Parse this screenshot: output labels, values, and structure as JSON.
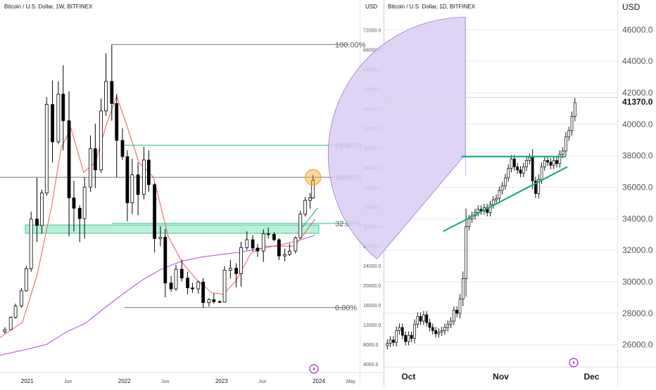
{
  "colors": {
    "candle": "#000000",
    "fib_gray": "#7a7a7a",
    "fib_green": "#1fb98a",
    "ema_red": "#f05a5a",
    "sma_purple": "#b14be6",
    "zone_fill": "#7ee6b8",
    "circle_orange": "#f5a623",
    "trend_teal": "#1aaa8c",
    "arc_fill": "#d9ccf3",
    "grid": "#e8e8e8",
    "logo_purple": "#9c27b0"
  },
  "icons": [
    "tradingview-logo-icon",
    "tradingview-logo-icon"
  ],
  "chart_data": [
    {
      "type": "candlestick",
      "title": "Bitcoin / U.S. Dollar, 1W, BITFINEX",
      "currency": "USD",
      "x_ticks": [
        "2021",
        "Jun",
        "2022",
        "Jun",
        "2023",
        "Jun",
        "2024",
        "May"
      ],
      "x_range_years": [
        2020.72,
        2024.42
      ],
      "y_range": [
        2300,
        75200
      ],
      "y_ticks": [
        "72000.0",
        "68000.0",
        "64000.0",
        "60000.0",
        "56000.0",
        "52000.0",
        "48000.0",
        "44000.0",
        "40000.0",
        "36000.0",
        "32000.0",
        "28000.0",
        "24000.0",
        "20000.0",
        "16000.0",
        "12000.0",
        "8000.0",
        "4000.0"
      ],
      "candles": [
        {
          "t": 2020.77,
          "o": 10600,
          "h": 11500,
          "l": 10200,
          "c": 11000
        },
        {
          "t": 2020.83,
          "o": 11000,
          "h": 13700,
          "l": 10900,
          "c": 13500
        },
        {
          "t": 2020.88,
          "o": 13500,
          "h": 16300,
          "l": 13200,
          "c": 15800
        },
        {
          "t": 2020.94,
          "o": 15800,
          "h": 19500,
          "l": 15500,
          "c": 18900
        },
        {
          "t": 2020.99,
          "o": 18900,
          "h": 24000,
          "l": 18700,
          "c": 23400
        },
        {
          "t": 2021.04,
          "o": 23400,
          "h": 35000,
          "l": 22800,
          "c": 33500
        },
        {
          "t": 2021.1,
          "o": 33500,
          "h": 41900,
          "l": 28800,
          "c": 32200
        },
        {
          "t": 2021.15,
          "o": 32200,
          "h": 39500,
          "l": 30500,
          "c": 38800
        },
        {
          "t": 2021.2,
          "o": 38800,
          "h": 58300,
          "l": 38200,
          "c": 56800
        },
        {
          "t": 2021.26,
          "o": 56800,
          "h": 61700,
          "l": 45000,
          "c": 49200
        },
        {
          "t": 2021.32,
          "o": 49200,
          "h": 61500,
          "l": 48800,
          "c": 58900
        },
        {
          "t": 2021.37,
          "o": 58900,
          "h": 64800,
          "l": 47500,
          "c": 53500
        },
        {
          "t": 2021.43,
          "o": 53500,
          "h": 59500,
          "l": 30000,
          "c": 37800
        },
        {
          "t": 2021.48,
          "o": 37800,
          "h": 41300,
          "l": 31000,
          "c": 35700
        },
        {
          "t": 2021.54,
          "o": 35700,
          "h": 36300,
          "l": 28800,
          "c": 33600
        },
        {
          "t": 2021.59,
          "o": 33600,
          "h": 42000,
          "l": 29500,
          "c": 40000
        },
        {
          "t": 2021.65,
          "o": 40000,
          "h": 50500,
          "l": 39000,
          "c": 47800
        },
        {
          "t": 2021.7,
          "o": 47800,
          "h": 52900,
          "l": 39800,
          "c": 43500
        },
        {
          "t": 2021.76,
          "o": 43500,
          "h": 58000,
          "l": 42900,
          "c": 55500
        },
        {
          "t": 2021.81,
          "o": 55500,
          "h": 67200,
          "l": 54500,
          "c": 61500
        },
        {
          "t": 2021.87,
          "o": 61500,
          "h": 69000,
          "l": 53500,
          "c": 57000
        },
        {
          "t": 2021.92,
          "o": 57000,
          "h": 59000,
          "l": 42000,
          "c": 49500
        },
        {
          "t": 2021.98,
          "o": 49500,
          "h": 52000,
          "l": 45500,
          "c": 46200
        },
        {
          "t": 2022.03,
          "o": 46200,
          "h": 47500,
          "l": 33000,
          "c": 36800
        },
        {
          "t": 2022.08,
          "o": 36800,
          "h": 45800,
          "l": 34500,
          "c": 42500
        },
        {
          "t": 2022.14,
          "o": 42500,
          "h": 45000,
          "l": 34300,
          "c": 38500
        },
        {
          "t": 2022.2,
          "o": 38500,
          "h": 48200,
          "l": 37500,
          "c": 45500
        },
        {
          "t": 2022.25,
          "o": 45500,
          "h": 47500,
          "l": 39000,
          "c": 40500
        },
        {
          "t": 2022.31,
          "o": 40500,
          "h": 40800,
          "l": 26700,
          "c": 29500
        },
        {
          "t": 2022.37,
          "o": 29500,
          "h": 32000,
          "l": 28000,
          "c": 29800
        },
        {
          "t": 2022.42,
          "o": 29800,
          "h": 31500,
          "l": 17600,
          "c": 20500
        },
        {
          "t": 2022.48,
          "o": 20500,
          "h": 21900,
          "l": 18700,
          "c": 19300
        },
        {
          "t": 2022.53,
          "o": 19300,
          "h": 24200,
          "l": 18900,
          "c": 23300
        },
        {
          "t": 2022.59,
          "o": 23300,
          "h": 25200,
          "l": 20800,
          "c": 21500
        },
        {
          "t": 2022.65,
          "o": 21500,
          "h": 22800,
          "l": 18200,
          "c": 19500
        },
        {
          "t": 2022.7,
          "o": 19500,
          "h": 20500,
          "l": 18500,
          "c": 19300
        },
        {
          "t": 2022.76,
          "o": 19300,
          "h": 21000,
          "l": 18300,
          "c": 20700
        },
        {
          "t": 2022.81,
          "o": 20700,
          "h": 21500,
          "l": 15500,
          "c": 16500
        },
        {
          "t": 2022.87,
          "o": 16500,
          "h": 17400,
          "l": 15700,
          "c": 17100
        },
        {
          "t": 2022.92,
          "o": 17100,
          "h": 18400,
          "l": 16300,
          "c": 16700
        },
        {
          "t": 2022.98,
          "o": 16700,
          "h": 17000,
          "l": 16400,
          "c": 16600
        },
        {
          "t": 2023.03,
          "o": 16600,
          "h": 23900,
          "l": 16500,
          "c": 23100
        },
        {
          "t": 2023.09,
          "o": 23100,
          "h": 25200,
          "l": 21400,
          "c": 23500
        },
        {
          "t": 2023.15,
          "o": 23500,
          "h": 24500,
          "l": 19600,
          "c": 22400
        },
        {
          "t": 2023.2,
          "o": 22400,
          "h": 28900,
          "l": 19800,
          "c": 27700
        },
        {
          "t": 2023.26,
          "o": 27700,
          "h": 31000,
          "l": 27200,
          "c": 29300
        },
        {
          "t": 2023.32,
          "o": 29300,
          "h": 30200,
          "l": 26900,
          "c": 27600
        },
        {
          "t": 2023.37,
          "o": 27600,
          "h": 28400,
          "l": 25800,
          "c": 27000
        },
        {
          "t": 2023.43,
          "o": 27000,
          "h": 31400,
          "l": 24800,
          "c": 30500
        },
        {
          "t": 2023.48,
          "o": 30500,
          "h": 31800,
          "l": 29500,
          "c": 30400
        },
        {
          "t": 2023.54,
          "o": 30400,
          "h": 30900,
          "l": 29000,
          "c": 29300
        },
        {
          "t": 2023.59,
          "o": 29300,
          "h": 29600,
          "l": 25200,
          "c": 26000
        },
        {
          "t": 2023.65,
          "o": 26000,
          "h": 27500,
          "l": 24900,
          "c": 26300
        },
        {
          "t": 2023.7,
          "o": 26300,
          "h": 28500,
          "l": 26000,
          "c": 27000
        },
        {
          "t": 2023.76,
          "o": 27000,
          "h": 30000,
          "l": 26500,
          "c": 29700
        },
        {
          "t": 2023.81,
          "o": 29700,
          "h": 35200,
          "l": 29500,
          "c": 34500
        },
        {
          "t": 2023.86,
          "o": 34500,
          "h": 38000,
          "l": 34000,
          "c": 37300
        },
        {
          "t": 2023.91,
          "o": 37300,
          "h": 38800,
          "l": 35600,
          "c": 37800
        },
        {
          "t": 2023.94,
          "o": 37800,
          "h": 42500,
          "l": 37600,
          "c": 41370
        }
      ],
      "ema_red": [
        {
          "t": 2020.72,
          "v": 9400
        },
        {
          "t": 2020.95,
          "v": 12500
        },
        {
          "t": 2021.1,
          "v": 22000
        },
        {
          "t": 2021.25,
          "v": 36000
        },
        {
          "t": 2021.35,
          "v": 48000
        },
        {
          "t": 2021.45,
          "v": 52000
        },
        {
          "t": 2021.58,
          "v": 43000
        },
        {
          "t": 2021.7,
          "v": 45000
        },
        {
          "t": 2021.82,
          "v": 53000
        },
        {
          "t": 2021.92,
          "v": 58500
        },
        {
          "t": 2022.0,
          "v": 54000
        },
        {
          "t": 2022.15,
          "v": 45000
        },
        {
          "t": 2022.3,
          "v": 42000
        },
        {
          "t": 2022.45,
          "v": 30000
        },
        {
          "t": 2022.6,
          "v": 24500
        },
        {
          "t": 2022.75,
          "v": 21000
        },
        {
          "t": 2022.9,
          "v": 18500
        },
        {
          "t": 2023.02,
          "v": 18200
        },
        {
          "t": 2023.15,
          "v": 21000
        },
        {
          "t": 2023.3,
          "v": 26500
        },
        {
          "t": 2023.45,
          "v": 28000
        },
        {
          "t": 2023.6,
          "v": 28000
        },
        {
          "t": 2023.75,
          "v": 28000
        },
        {
          "t": 2023.85,
          "v": 30500
        },
        {
          "t": 2023.96,
          "v": 33500
        }
      ],
      "sma_purple": [
        {
          "t": 2020.72,
          "v": 5800
        },
        {
          "t": 2020.95,
          "v": 6800
        },
        {
          "t": 2021.2,
          "v": 8000
        },
        {
          "t": 2021.4,
          "v": 10500
        },
        {
          "t": 2021.6,
          "v": 12300
        },
        {
          "t": 2021.8,
          "v": 15500
        },
        {
          "t": 2022.0,
          "v": 18500
        },
        {
          "t": 2022.2,
          "v": 21300
        },
        {
          "t": 2022.4,
          "v": 23500
        },
        {
          "t": 2022.6,
          "v": 25000
        },
        {
          "t": 2022.8,
          "v": 25800
        },
        {
          "t": 2023.0,
          "v": 26300
        },
        {
          "t": 2023.2,
          "v": 26800
        },
        {
          "t": 2023.4,
          "v": 27500
        },
        {
          "t": 2023.6,
          "v": 28200
        },
        {
          "t": 2023.8,
          "v": 29200
        },
        {
          "t": 2023.96,
          "v": 30200
        }
      ],
      "fib_levels": [
        {
          "label": "100.00%",
          "price": 69000,
          "t_from": 2021.87,
          "color": "#7a7a7a"
        },
        {
          "label": "61.80%",
          "price": 48500,
          "t_from": 2021.98,
          "color": "#1fb98a"
        },
        {
          "label": "50.00%",
          "price": 42000,
          "t_from": 2020.72,
          "color": "#7a7a7a"
        },
        {
          "label": "32.80%",
          "price": 32600,
          "t_from": 2021.87,
          "color": "#1fb98a"
        },
        {
          "label": "0.00%",
          "price": 15500,
          "t_from": 2022.0,
          "color": "#7a7a7a"
        }
      ],
      "support_zone": {
        "t_from": 2020.98,
        "t_to": 2024.0,
        "low": 30600,
        "high": 32300
      },
      "trend_segment": {
        "t_from": 2023.83,
        "p_from": 31800,
        "t_to": 2023.99,
        "p_to": 35800
      },
      "highlight_circle_price": 42000
    },
    {
      "type": "candlestick",
      "title": "Bitcoin / U.S. Dollar, 1D, BITFINEX",
      "currency": "USD",
      "last_price": "41370.0",
      "x_ticks": [
        "Oct",
        "Nov",
        "Dec"
      ],
      "x_range_days": [
        -1,
        76
      ],
      "day_index": "0 = Sep 24 2023",
      "y_range": [
        24600,
        47000
      ],
      "y_ticks": [
        "46000.0",
        "44000.0",
        "42000.0",
        "40000.0",
        "38000.0",
        "36000.0",
        "34000.0",
        "32000.0",
        "30000.0",
        "28000.0",
        "26000.0"
      ],
      "closes": [
        26100,
        26300,
        26150,
        26900,
        27100,
        26600,
        26200,
        26600,
        26400,
        27300,
        27800,
        27500,
        27900,
        27400,
        27100,
        26900,
        26700,
        26800,
        26900,
        27100,
        27300,
        27500,
        28200,
        28000,
        28900,
        30200,
        33500,
        34000,
        34200,
        34400,
        34600,
        34500,
        34700,
        34400,
        34900,
        35200,
        35300,
        35800,
        36100,
        36600,
        37200,
        37800,
        37300,
        37100,
        36900,
        37300,
        37700,
        37900,
        36400,
        35600,
        36500,
        37300,
        37700,
        37600,
        37400,
        37700,
        37500,
        38100,
        38300,
        39200,
        39600,
        40500,
        41370
      ],
      "wedge_high": {
        "d_from": 16.5,
        "d_to": 25.8,
        "price": 46800
      },
      "arc_center": {
        "day": 25.8,
        "price": 38100
      },
      "resistance": {
        "d_from": 24.5,
        "d_to": 59,
        "price": 37950
      },
      "trend_line": {
        "d_from": 18.5,
        "p_from": 33200,
        "d_to": 59.5,
        "p_to": 37300
      },
      "last_price_line": 41700
    }
  ]
}
